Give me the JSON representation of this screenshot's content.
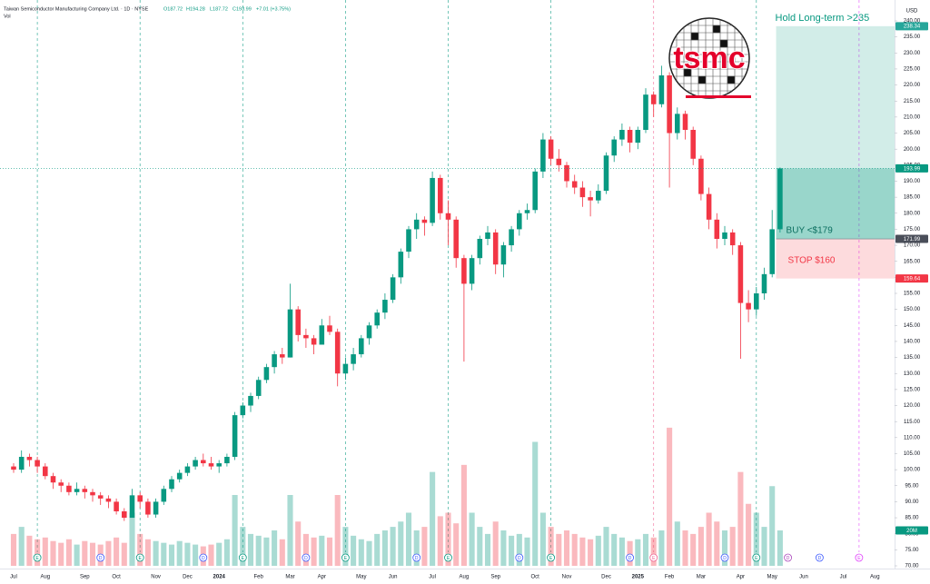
{
  "chart_data": {
    "type": "candlestick",
    "header": {
      "symbol": "Taiwan Semiconductor Manufacturing Company Ltd. · 1D · NYSE",
      "ohlc": [
        "O187.72",
        "H194.28",
        "L187.72",
        "C193.99"
      ],
      "change": "+7.01 (+3.75%)",
      "volume_title": "Vol",
      "currency": "USD"
    },
    "logo_text": "tsmc",
    "categories": [
      "Jul",
      null,
      null,
      null,
      "Aug",
      null,
      null,
      null,
      null,
      "Sep",
      null,
      null,
      null,
      "Oct",
      null,
      null,
      null,
      null,
      "Nov",
      null,
      null,
      null,
      "Dec",
      null,
      null,
      null,
      "2024",
      null,
      null,
      null,
      null,
      "Feb",
      null,
      null,
      null,
      "Mar",
      null,
      null,
      null,
      "Apr",
      null,
      null,
      null,
      null,
      "May",
      null,
      null,
      null,
      "Jun",
      null,
      null,
      null,
      null,
      "Jul",
      null,
      null,
      null,
      "Aug",
      null,
      null,
      null,
      "Sep",
      null,
      null,
      null,
      null,
      "Oct",
      null,
      null,
      null,
      "Nov",
      null,
      null,
      null,
      null,
      "Dec",
      null,
      null,
      null,
      "2025",
      null,
      null,
      null,
      "Feb",
      null,
      null,
      null,
      "Mar",
      null,
      null,
      null,
      null,
      "Apr",
      null,
      null,
      null,
      "May",
      null,
      null,
      null,
      "Jun",
      null,
      null,
      null,
      null,
      "Jul",
      null,
      null,
      null,
      "Aug",
      null
    ],
    "ohlc": [
      [
        101,
        102,
        99,
        100
      ],
      [
        100,
        106,
        99,
        104
      ],
      [
        104,
        105,
        101,
        103
      ],
      [
        103,
        104,
        99,
        101
      ],
      [
        101,
        102,
        97,
        98
      ],
      [
        98,
        99,
        94,
        96
      ],
      [
        96,
        97,
        93,
        95
      ],
      [
        95,
        96,
        92,
        93
      ],
      [
        93,
        96,
        92,
        94
      ],
      [
        94,
        95,
        91,
        93
      ],
      [
        93,
        94,
        90,
        92
      ],
      [
        92,
        93,
        89,
        91
      ],
      [
        91,
        92,
        88,
        90
      ],
      [
        90,
        91,
        86,
        87
      ],
      [
        87,
        88,
        84,
        85
      ],
      [
        85,
        94,
        85,
        92
      ],
      [
        92,
        93,
        88,
        90
      ],
      [
        90,
        91,
        85,
        86
      ],
      [
        86,
        91,
        85,
        90
      ],
      [
        90,
        95,
        89,
        94
      ],
      [
        94,
        98,
        93,
        97
      ],
      [
        97,
        100,
        96,
        99
      ],
      [
        99,
        102,
        98,
        101
      ],
      [
        101,
        104,
        100,
        103
      ],
      [
        103,
        105,
        101,
        102
      ],
      [
        102,
        104,
        100,
        101
      ],
      [
        101,
        103,
        99,
        102
      ],
      [
        102,
        105,
        101,
        104
      ],
      [
        104,
        118,
        103,
        117
      ],
      [
        117,
        121,
        116,
        120
      ],
      [
        120,
        124,
        118,
        123
      ],
      [
        123,
        129,
        122,
        128
      ],
      [
        128,
        133,
        127,
        132
      ],
      [
        132,
        137,
        130,
        136
      ],
      [
        136,
        138,
        133,
        135
      ],
      [
        135,
        158,
        135,
        150
      ],
      [
        150,
        151,
        140,
        142
      ],
      [
        142,
        144,
        138,
        141
      ],
      [
        141,
        142,
        136,
        139
      ],
      [
        139,
        147,
        139,
        145
      ],
      [
        145,
        148,
        142,
        143
      ],
      [
        143,
        144,
        126,
        130
      ],
      [
        130,
        135,
        128,
        133
      ],
      [
        133,
        138,
        131,
        136
      ],
      [
        136,
        142,
        135,
        141
      ],
      [
        141,
        146,
        139,
        145
      ],
      [
        145,
        150,
        144,
        149
      ],
      [
        149,
        155,
        147,
        153
      ],
      [
        153,
        161,
        152,
        160
      ],
      [
        160,
        169,
        158,
        168
      ],
      [
        168,
        176,
        166,
        175
      ],
      [
        175,
        180,
        172,
        178
      ],
      [
        178,
        179,
        173,
        177
      ],
      [
        177,
        193,
        176,
        191
      ],
      [
        191,
        192,
        178,
        180
      ],
      [
        180,
        184,
        170,
        178
      ],
      [
        178,
        179,
        163,
        166
      ],
      [
        166,
        167,
        133.7,
        158
      ],
      [
        158,
        167,
        156,
        166
      ],
      [
        166,
        173,
        164,
        172
      ],
      [
        172,
        176,
        170,
        174
      ],
      [
        174,
        175,
        161,
        164
      ],
      [
        164,
        171,
        160,
        170
      ],
      [
        170,
        176,
        168,
        175
      ],
      [
        175,
        181,
        173,
        180
      ],
      [
        180,
        183,
        178,
        181
      ],
      [
        181,
        194,
        180,
        193
      ],
      [
        193,
        205,
        191,
        203
      ],
      [
        203,
        204,
        195,
        197
      ],
      [
        197,
        200,
        193,
        195
      ],
      [
        195,
        196,
        188,
        190
      ],
      [
        190,
        192,
        186,
        188
      ],
      [
        188,
        190,
        182,
        185
      ],
      [
        185,
        187,
        179,
        184
      ],
      [
        184,
        189,
        183,
        187
      ],
      [
        187,
        199,
        186,
        198
      ],
      [
        198,
        204,
        196,
        203
      ],
      [
        203,
        208,
        201,
        206
      ],
      [
        206,
        207,
        199,
        202
      ],
      [
        202,
        207,
        200,
        206
      ],
      [
        206,
        219,
        205,
        217
      ],
      [
        217,
        218,
        210,
        214
      ],
      [
        214,
        226,
        213,
        223
      ],
      [
        223,
        224,
        188,
        205
      ],
      [
        205,
        213,
        203,
        211
      ],
      [
        211,
        212,
        203,
        206
      ],
      [
        206,
        207,
        195,
        197
      ],
      [
        197,
        198,
        184,
        186
      ],
      [
        186,
        188,
        175,
        178
      ],
      [
        178,
        180,
        169,
        172
      ],
      [
        172,
        176,
        170,
        174
      ],
      [
        174,
        175,
        167,
        170
      ],
      [
        170,
        171,
        134.6,
        152
      ],
      [
        152,
        156,
        146,
        150
      ],
      [
        150,
        157,
        148,
        155
      ],
      [
        155,
        163,
        153,
        161
      ],
      [
        161,
        181,
        160,
        175
      ],
      [
        175,
        194.28,
        174,
        193.99
      ],
      null,
      null,
      null,
      null,
      null,
      null,
      null,
      null,
      null,
      null,
      null,
      null,
      null
    ],
    "volume": [
      18,
      22,
      17,
      15,
      16,
      14,
      13,
      15,
      12,
      14,
      13,
      12,
      14,
      16,
      13,
      30,
      18,
      15,
      14,
      13,
      12,
      14,
      13,
      12,
      11,
      12,
      13,
      15,
      40,
      22,
      18,
      17,
      16,
      20,
      15,
      40,
      25,
      18,
      16,
      17,
      16,
      40,
      22,
      17,
      15,
      14,
      18,
      20,
      22,
      25,
      30,
      20,
      22,
      53,
      28,
      30,
      24,
      57,
      30,
      22,
      18,
      25,
      20,
      17,
      18,
      16,
      70,
      30,
      22,
      18,
      20,
      18,
      16,
      15,
      17,
      22,
      18,
      16,
      14,
      15,
      18,
      16,
      20,
      78,
      25,
      20,
      18,
      22,
      30,
      25,
      20,
      22,
      53,
      35,
      30,
      22,
      45,
      20,
      null,
      null,
      null,
      null,
      null,
      null,
      null,
      null,
      null,
      null,
      null,
      null,
      null
    ],
    "volume_label": "20M",
    "up_color": "#089981",
    "down_color": "#f23645",
    "ylim": [
      70,
      240
    ],
    "yticks": [
      {
        "value": 70,
        "label": "70.00"
      },
      {
        "value": 75,
        "label": "75.00"
      },
      {
        "value": 80,
        "label": "80.00"
      },
      {
        "value": 85,
        "label": "85.00"
      },
      {
        "value": 90,
        "label": "90.00"
      },
      {
        "value": 95,
        "label": "95.00"
      },
      {
        "value": 100,
        "label": "100.00"
      },
      {
        "value": 105,
        "label": "105.00"
      },
      {
        "value": 110,
        "label": "110.00"
      },
      {
        "value": 115,
        "label": "115.00"
      },
      {
        "value": 120,
        "label": "120.00"
      },
      {
        "value": 125,
        "label": "125.00"
      },
      {
        "value": 130,
        "label": "130.00"
      },
      {
        "value": 135,
        "label": "135.00"
      },
      {
        "value": 140,
        "label": "140.00"
      },
      {
        "value": 145,
        "label": "145.00"
      },
      {
        "value": 150,
        "label": "150.00"
      },
      {
        "value": 155,
        "label": "155.00"
      },
      {
        "value": 160,
        "label": "160.00"
      },
      {
        "value": 165,
        "label": "165.00"
      },
      {
        "value": 170,
        "label": "170.00"
      },
      {
        "value": 175,
        "label": "175.00"
      },
      {
        "value": 180,
        "label": "180.00"
      },
      {
        "value": 185,
        "label": "185.00"
      },
      {
        "value": 190,
        "label": "190.00"
      },
      {
        "value": 195,
        "label": "195.00"
      },
      {
        "value": 200,
        "label": "200.00"
      },
      {
        "value": 205,
        "label": "205.00"
      },
      {
        "value": 210,
        "label": "210.00"
      },
      {
        "value": 215,
        "label": "215.00"
      },
      {
        "value": 220,
        "label": "220.00"
      },
      {
        "value": 225,
        "label": "225.00"
      },
      {
        "value": 230,
        "label": "230.00"
      },
      {
        "value": 235,
        "label": "235.00"
      },
      {
        "value": 240,
        "label": "240.00"
      }
    ],
    "grid": false,
    "last_price": 193.99,
    "events": [
      {
        "label": "E",
        "at": 3,
        "color": "#089981"
      },
      {
        "label": "D",
        "at": 11,
        "color": "#3d5afe"
      },
      {
        "label": "E",
        "at": 16,
        "color": "#089981"
      },
      {
        "label": "D",
        "at": 24,
        "color": "#3d5afe"
      },
      {
        "label": "E",
        "at": 29,
        "color": "#089981"
      },
      {
        "label": "D",
        "at": 37,
        "color": "#3d5afe"
      },
      {
        "label": "E",
        "at": 42,
        "color": "#089981"
      },
      {
        "label": "D",
        "at": 51,
        "color": "#3d5afe"
      },
      {
        "label": "E",
        "at": 55,
        "color": "#089981"
      },
      {
        "label": "D",
        "at": 64,
        "color": "#3d5afe"
      },
      {
        "label": "E",
        "at": 68,
        "color": "#089981"
      },
      {
        "label": "D",
        "at": 78,
        "color": "#3d5afe"
      },
      {
        "label": "E",
        "at": 81,
        "color": "#f06292"
      },
      {
        "label": "D",
        "at": 90,
        "color": "#3d5afe"
      },
      {
        "label": "E",
        "at": 94,
        "color": "#089981"
      },
      {
        "label": "D",
        "at": 98,
        "color": "#ab47bc"
      },
      {
        "label": "D",
        "at": 102,
        "color": "#3d5afe"
      },
      {
        "label": "E",
        "at": 107,
        "color": "#e040fb"
      }
    ],
    "position": {
      "from": 97,
      "target": 238.34,
      "entry": 171.99,
      "stop": 159.64,
      "target_text": "Hold Long-term >235",
      "entry_text": "BUY <$179",
      "stop_text": "STOP $160"
    }
  }
}
